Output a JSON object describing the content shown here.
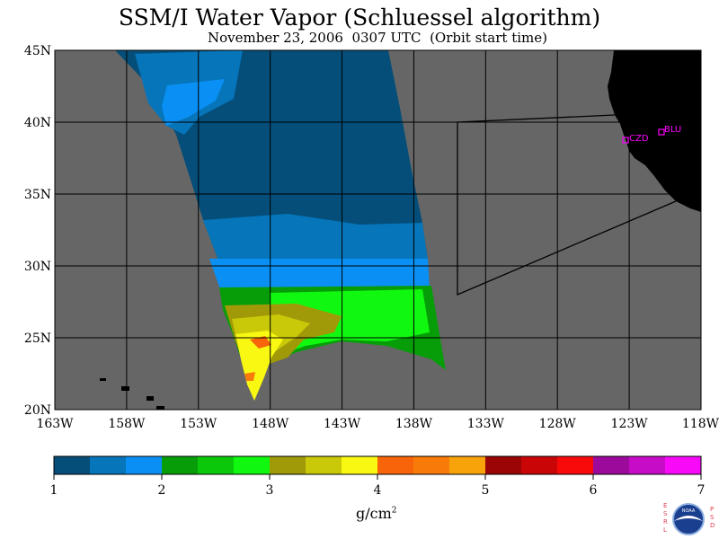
{
  "title": "SSM/I Water Vapor (Schluessel algorithm)",
  "subtitle": "November 23, 2006  0307 UTC  (Orbit start time)",
  "map": {
    "lat_labels": [
      "45N",
      "40N",
      "35N",
      "30N",
      "25N",
      "20N"
    ],
    "lon_labels": [
      "163W",
      "158W",
      "153W",
      "148W",
      "143W",
      "138W",
      "133W",
      "128W",
      "123W",
      "118W"
    ],
    "stations": [
      {
        "name": "CZD",
        "color": "#ff00ff"
      },
      {
        "name": "BLU",
        "color": "#ff00ff"
      }
    ],
    "colors": {
      "ocean": "#666666",
      "land": "#000000",
      "grid": "#000000",
      "stations": "#ff00ff"
    }
  },
  "colorbar": {
    "ticks": [
      "1",
      "2",
      "3",
      "4",
      "5",
      "6",
      "7"
    ],
    "units": "g/cm",
    "units_exponent": "2",
    "colors": [
      "#044e79",
      "#0675b9",
      "#0a90f5",
      "#079d09",
      "#0bc80b",
      "#10f810",
      "#a09a09",
      "#c9c90a",
      "#f8f812",
      "#f86409",
      "#f87b09",
      "#f8a309",
      "#9c0505",
      "#c90505",
      "#f80a0a",
      "#9b0a9b",
      "#c60cc6",
      "#f80af8"
    ]
  },
  "logo": {
    "left_letters": "ESRL",
    "right_letters": "PSD",
    "badge_text": "NOAA"
  }
}
